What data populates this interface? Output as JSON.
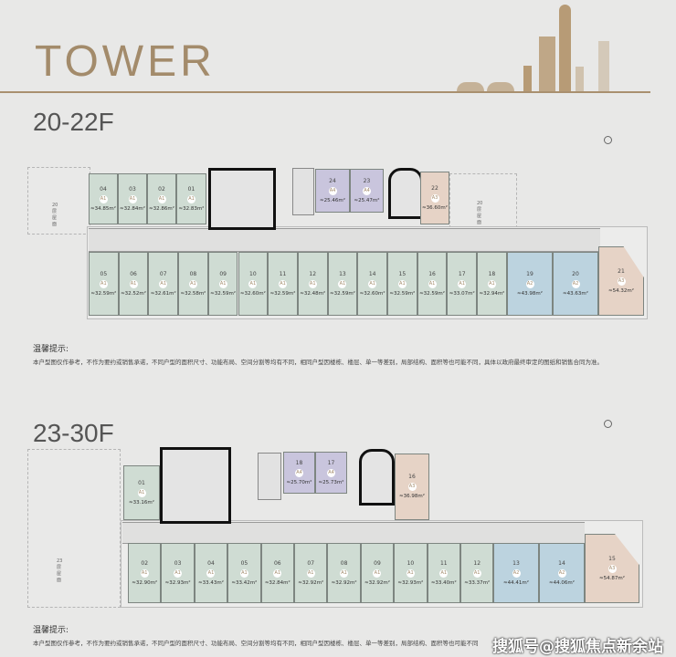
{
  "header": {
    "title": "TOWER"
  },
  "colors": {
    "accent": "#a38b6b",
    "A1": "#cfdcd3",
    "A2": "#bcd3df",
    "A3": "#e6d3c6",
    "A4": "#c9c5dd"
  },
  "plans": [
    {
      "floor_label": "20-22F",
      "roof_labels": [
        "20层屋面",
        "20层屋面"
      ],
      "units": [
        {
          "no": "04",
          "type": "A1",
          "area": "≈34.85m²"
        },
        {
          "no": "03",
          "type": "A1",
          "area": "≈32.84m²"
        },
        {
          "no": "02",
          "type": "A1",
          "area": "≈32.86m²"
        },
        {
          "no": "01",
          "type": "A1",
          "area": "≈32.83m²"
        },
        {
          "no": "24",
          "type": "A4",
          "area": "≈25.46m²"
        },
        {
          "no": "23",
          "type": "A4",
          "area": "≈25.47m²"
        },
        {
          "no": "22",
          "type": "A3",
          "area": "≈36.60m²"
        },
        {
          "no": "05",
          "type": "A1",
          "area": "≈32.59m²"
        },
        {
          "no": "06",
          "type": "A1",
          "area": "≈32.52m²"
        },
        {
          "no": "07",
          "type": "A1",
          "area": "≈32.61m²"
        },
        {
          "no": "08",
          "type": "A1",
          "area": "≈32.58m²"
        },
        {
          "no": "09",
          "type": "A1",
          "area": "≈32.59m²"
        },
        {
          "no": "10",
          "type": "A1",
          "area": "≈32.60m²"
        },
        {
          "no": "11",
          "type": "A1",
          "area": "≈32.59m²"
        },
        {
          "no": "12",
          "type": "A1",
          "area": "≈32.48m²"
        },
        {
          "no": "13",
          "type": "A1",
          "area": "≈32.59m²"
        },
        {
          "no": "14",
          "type": "A1",
          "area": "≈32.60m²"
        },
        {
          "no": "15",
          "type": "A1",
          "area": "≈32.59m²"
        },
        {
          "no": "16",
          "type": "A1",
          "area": "≈32.59m²"
        },
        {
          "no": "17",
          "type": "A1",
          "area": "≈33.07m²"
        },
        {
          "no": "18",
          "type": "A1",
          "area": "≈32.94m²"
        },
        {
          "no": "19",
          "type": "A2",
          "area": "≈43.98m²"
        },
        {
          "no": "20",
          "type": "A2",
          "area": "≈43.63m²"
        },
        {
          "no": "21",
          "type": "A3",
          "area": "≈54.32m²"
        }
      ],
      "notice_heading": "温馨提示:",
      "notice_text": "本户型图仅作参考，不作为要约或销售承诺，不同户型的面积尺寸、功能布局、空间分割等均有不同，相同户型因楼栋、楼层、单一等差别，局部结构、面积等也可能不同，具体以政府最终审定的图纸和销售合同为准。"
    },
    {
      "floor_label": "23-30F",
      "roof_labels": [
        "23层屋面"
      ],
      "units": [
        {
          "no": "01",
          "type": "A1",
          "area": "≈33.16m²"
        },
        {
          "no": "18",
          "type": "A4",
          "area": "≈25.70m²"
        },
        {
          "no": "17",
          "type": "A4",
          "area": "≈25.73m²"
        },
        {
          "no": "16",
          "type": "A3",
          "area": "≈36.98m²"
        },
        {
          "no": "02",
          "type": "A1",
          "area": "≈32.90m²"
        },
        {
          "no": "03",
          "type": "A1",
          "area": "≈32.93m²"
        },
        {
          "no": "04",
          "type": "A1",
          "area": "≈33.43m²"
        },
        {
          "no": "05",
          "type": "A1",
          "area": "≈33.42m²"
        },
        {
          "no": "06",
          "type": "A1",
          "area": "≈32.84m²"
        },
        {
          "no": "07",
          "type": "A1",
          "area": "≈32.92m²"
        },
        {
          "no": "08",
          "type": "A1",
          "area": "≈32.92m²"
        },
        {
          "no": "09",
          "type": "A1",
          "area": "≈32.92m²"
        },
        {
          "no": "10",
          "type": "A1",
          "area": "≈32.93m²"
        },
        {
          "no": "11",
          "type": "A1",
          "area": "≈33.40m²"
        },
        {
          "no": "12",
          "type": "A1",
          "area": "≈33.37m²"
        },
        {
          "no": "13",
          "type": "A2",
          "area": "≈44.41m²"
        },
        {
          "no": "14",
          "type": "A2",
          "area": "≈44.06m²"
        },
        {
          "no": "15",
          "type": "A3",
          "area": "≈54.87m²"
        }
      ],
      "notice_heading": "温馨提示:",
      "notice_text": "本户型图仅作参考，不作为要约或销售承诺，不同户型的面积尺寸、功能布局、空间分割等均有不同，相同户型因楼栋、楼层、单一等差别，局部结构、面积等也可能不同"
    }
  ],
  "watermark": "搜狐号@搜狐焦点新余站"
}
